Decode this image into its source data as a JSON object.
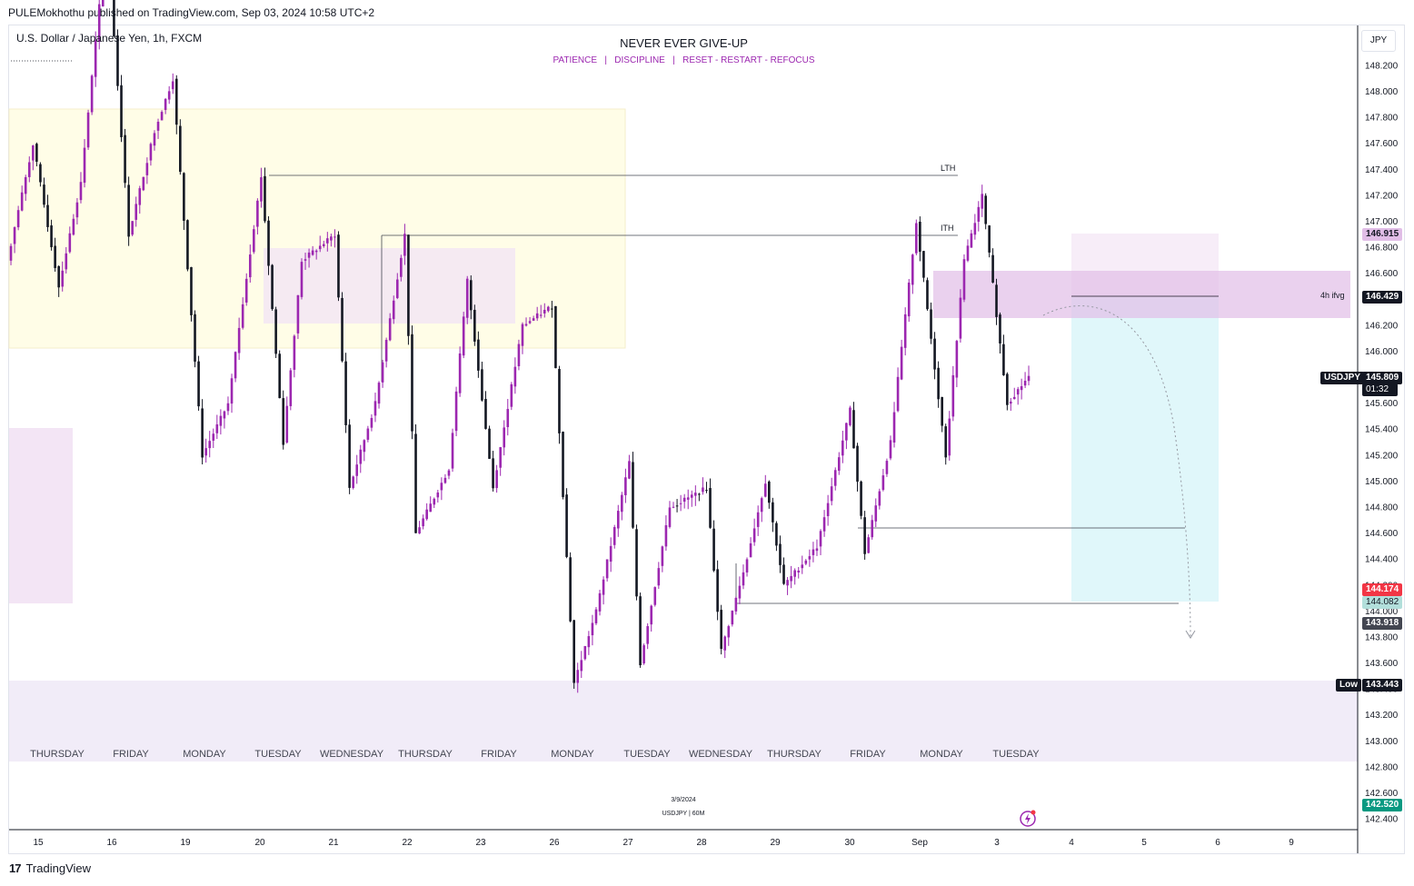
{
  "header": {
    "published": "PULEMokhothu published on TradingView.com, Sep 03, 2024 10:58 UTC+2"
  },
  "symbol_title": "U.S. Dollar / Japanese Yen, 1h, FXCM",
  "motto": {
    "line1": "NEVER EVER GIVE-UP",
    "line2": "PATIENCE   |   DISCIPLINE   |   RESET - RESTART - REFOCUS"
  },
  "axis": {
    "currency": "JPY"
  },
  "tags": {
    "level_top": "146.915",
    "level_fvg": "146.429",
    "symbol": "USDJPY",
    "last_price": "145.809",
    "countdown": "01:32",
    "stop": "144.174",
    "target1": "144.082",
    "target2": "143.918",
    "low_label": "Low",
    "low_value": "143.443",
    "bottom": "142.520"
  },
  "annotations": {
    "lth": "LTH",
    "ith": "ITH",
    "fvg": "4h ifvg"
  },
  "watermark": {
    "date": "3/9/2024",
    "symbol": "USDJPY | 60M"
  },
  "footer": {
    "brand": "TradingView"
  },
  "colors": {
    "bull": "#9c27b0",
    "bear": "#131722",
    "zone_yellow": "#fffde7",
    "zone_pink": "#f3e5f5",
    "fvg": "#e1bee7",
    "target_zone": "#b2ebf2",
    "low_zone": "#ede7f6",
    "price_tag": "#131722",
    "stop_tag": "#f23645",
    "target_tag": "#b2dfdb",
    "bottom_tag": "#089981"
  },
  "chart_data": {
    "type": "candlestick",
    "y_ticks": [
      "148.200",
      "148.000",
      "147.800",
      "147.600",
      "147.400",
      "147.200",
      "147.000",
      "146.800",
      "146.600",
      "146.400",
      "146.200",
      "146.000",
      "145.800",
      "145.600",
      "145.400",
      "145.200",
      "145.000",
      "144.800",
      "144.600",
      "144.400",
      "144.200",
      "144.000",
      "143.800",
      "143.600",
      "143.400",
      "143.200",
      "143.000",
      "142.800",
      "142.600",
      "142.400"
    ],
    "ylim": [
      142.3,
      148.4
    ],
    "x_ticks": [
      "15",
      "16",
      "19",
      "20",
      "21",
      "22",
      "23",
      "26",
      "27",
      "28",
      "29",
      "30",
      "Sep",
      "3",
      "4",
      "5",
      "6",
      "9"
    ],
    "day_labels": [
      "THURSDAY",
      "FRIDAY",
      "MONDAY",
      "TUESDAY",
      "WEDNESDAY",
      "THURSDAY",
      "FRIDAY",
      "MONDAY",
      "TUESDAY",
      "WEDNESDAY",
      "THURSDAY",
      "FRIDAY",
      "MONDAY",
      "TUESDAY"
    ],
    "daily_path": [
      {
        "label": "15",
        "open": 146.7,
        "high": 147.6,
        "low": 146.5,
        "close": 147.3
      },
      {
        "label": "16",
        "open": 147.3,
        "high": 149.2,
        "low": 146.9,
        "close": 147.7
      },
      {
        "label": "19",
        "open": 147.7,
        "high": 148.1,
        "low": 145.2,
        "close": 145.6
      },
      {
        "label": "20",
        "open": 145.6,
        "high": 147.35,
        "low": 145.3,
        "close": 146.7
      },
      {
        "label": "21",
        "open": 146.7,
        "high": 146.9,
        "low": 144.95,
        "close": 145.6
      },
      {
        "label": "22",
        "open": 145.6,
        "high": 146.9,
        "low": 144.6,
        "close": 145.1
      },
      {
        "label": "23",
        "open": 145.1,
        "high": 146.55,
        "low": 144.95,
        "close": 146.2
      },
      {
        "label": "26",
        "open": 146.2,
        "high": 146.35,
        "low": 143.45,
        "close": 144.0
      },
      {
        "label": "27",
        "open": 144.0,
        "high": 145.15,
        "low": 143.6,
        "close": 144.8
      },
      {
        "label": "28",
        "open": 144.8,
        "high": 144.95,
        "low": 143.7,
        "close": 144.3
      },
      {
        "label": "29",
        "open": 144.3,
        "high": 145.0,
        "low": 144.2,
        "close": 144.5
      },
      {
        "label": "30",
        "open": 144.5,
        "high": 145.55,
        "low": 144.45,
        "close": 145.3
      },
      {
        "label": "Sep",
        "open": 145.3,
        "high": 147.0,
        "low": 145.2,
        "close": 146.7
      },
      {
        "label": "3",
        "open": 146.7,
        "high": 147.2,
        "low": 145.6,
        "close": 145.809
      }
    ],
    "levels": [
      {
        "name": "LTH",
        "value": 147.35
      },
      {
        "name": "ITH",
        "value": 146.9
      },
      {
        "name": "4h ifvg",
        "value": 146.429
      }
    ]
  }
}
